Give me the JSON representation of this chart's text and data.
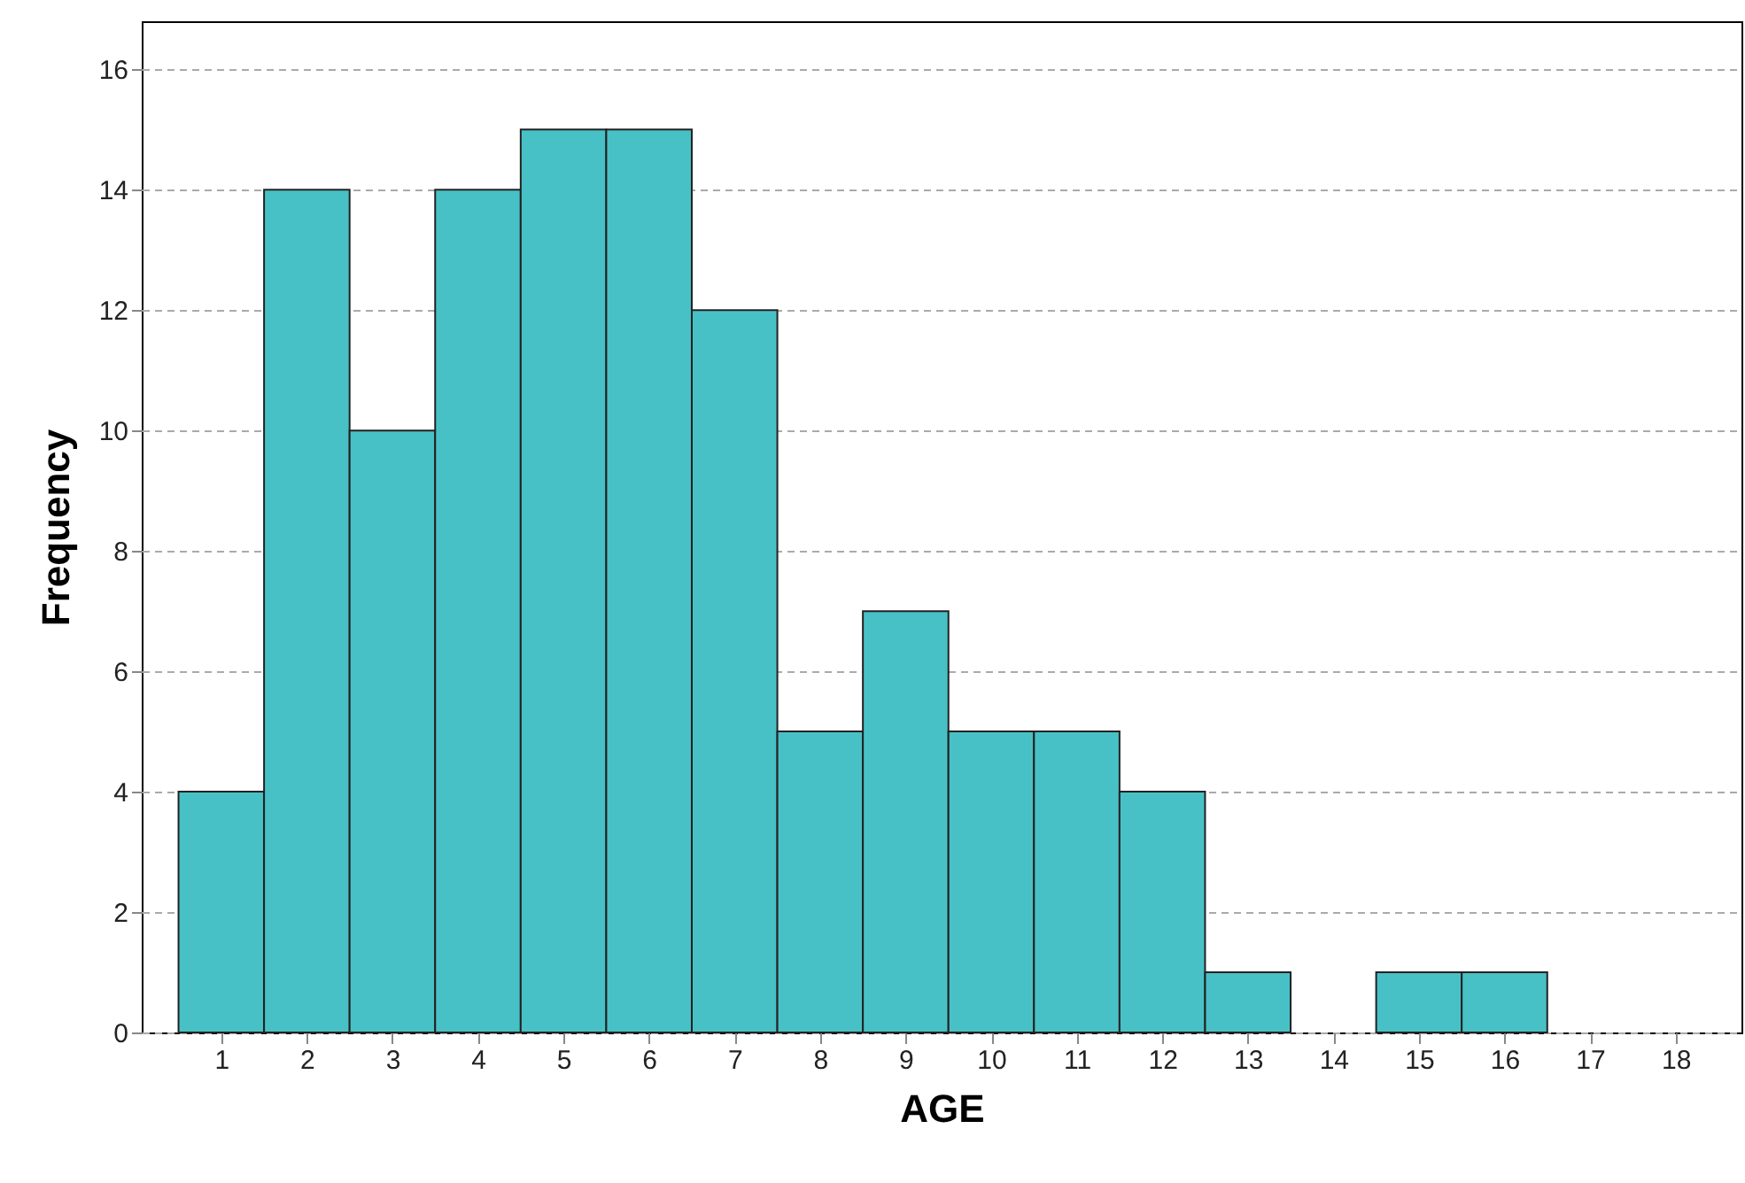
{
  "chart_data": {
    "type": "histogram",
    "xlabel": "AGE",
    "ylabel": "Frequency",
    "bins": [
      0.5,
      1.5,
      2.5,
      3.5,
      4.5,
      5.5,
      6.5,
      7.5,
      8.5,
      9.5,
      10.5,
      11.5,
      12.5,
      13.5,
      14.5,
      15.5,
      16.5
    ],
    "values": [
      4,
      14,
      10,
      14,
      15,
      15,
      12,
      5,
      7,
      5,
      5,
      4,
      1,
      0,
      1,
      1
    ],
    "color": "#48c1c6",
    "xlim": [
      0.07,
      18.77
    ],
    "xticks": [
      1,
      2,
      3,
      4,
      5,
      6,
      7,
      8,
      9,
      10,
      11,
      12,
      13,
      14,
      15,
      16,
      17,
      18
    ],
    "ylim": [
      0,
      16.8
    ],
    "yticks": [
      0,
      2,
      4,
      6,
      8,
      10,
      12,
      14,
      16
    ],
    "grid": "y"
  }
}
